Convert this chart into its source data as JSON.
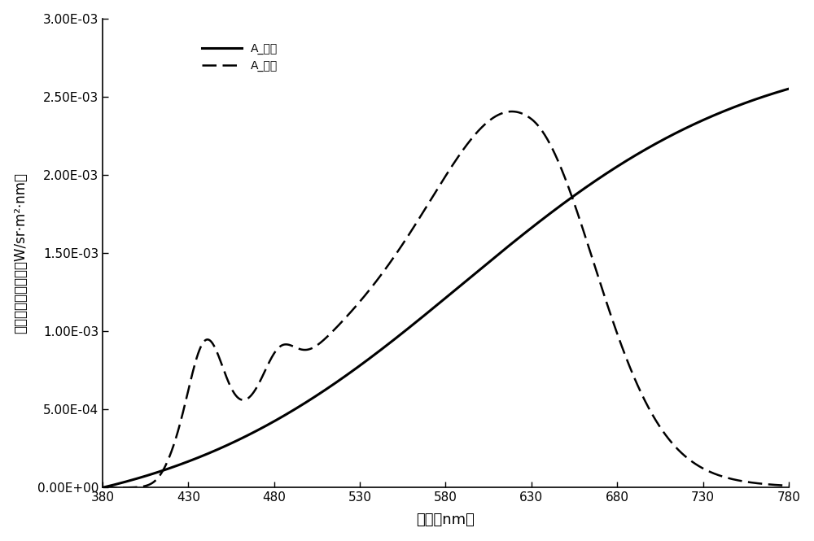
{
  "xlim": [
    380,
    780
  ],
  "ylim": [
    0,
    0.003
  ],
  "xticks": [
    380,
    430,
    480,
    530,
    580,
    630,
    680,
    730,
    780
  ],
  "yticks": [
    0.0,
    0.0005,
    0.001,
    0.0015,
    0.002,
    0.0025,
    0.003
  ],
  "ytick_labels": [
    "0.00E+00",
    "5.00E-04",
    "1.00E-03",
    "1.50E-03",
    "2.00E-03",
    "2.50E-03",
    "3.00E-03"
  ],
  "xlabel": "波长（nm）",
  "ylabel": "光谱辐射亮度分布（W/sr·m²·nm）",
  "legend_solid": "A_目标",
  "legend_dashed": "A_匹配",
  "line_color": "#000000",
  "background_color": "#ffffff",
  "figsize": [
    10.0,
    6.65
  ],
  "dpi": 100
}
